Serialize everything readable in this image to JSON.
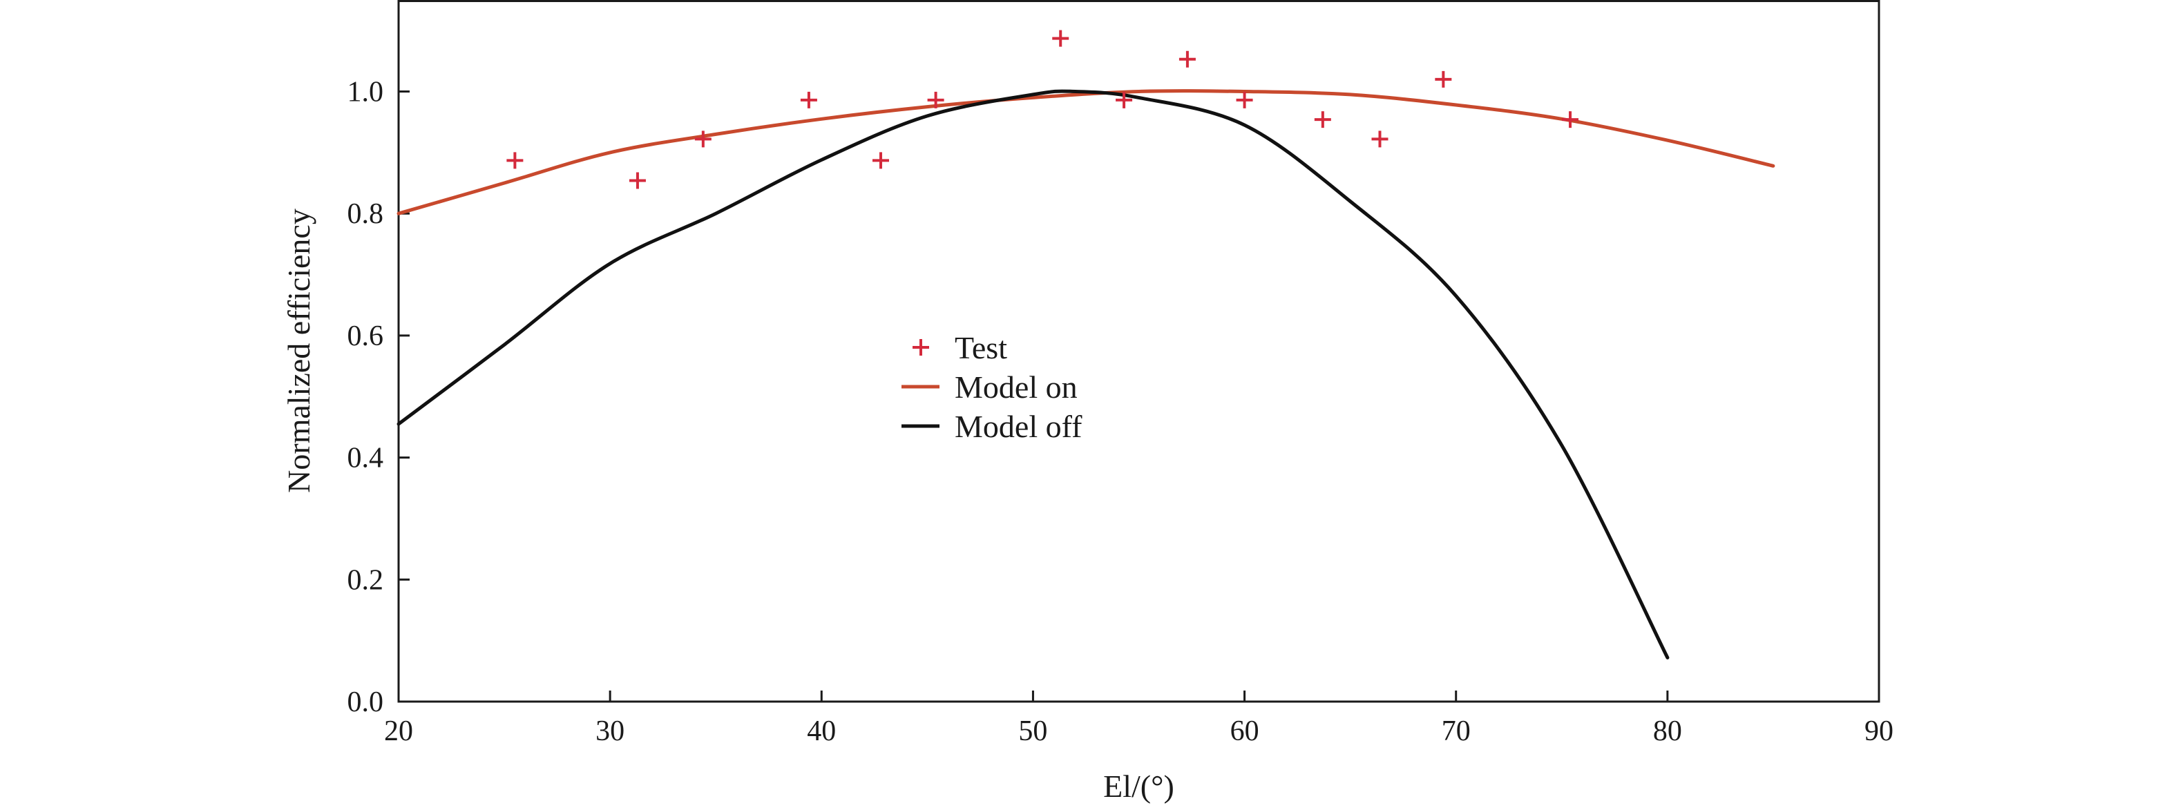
{
  "chart_data": {
    "type": "scatter",
    "xlabel": "El/(°)",
    "ylabel": "Normalized efficiency",
    "xlim": [
      20,
      90
    ],
    "ylim": [
      0.0,
      1.15
    ],
    "x_ticks": [
      20,
      30,
      40,
      50,
      60,
      70,
      80,
      90
    ],
    "x_tick_labels": [
      "20",
      "30",
      "40",
      "50",
      "60",
      "70",
      "80",
      "90"
    ],
    "y_ticks": [
      0.0,
      0.2,
      0.4,
      0.6,
      0.8,
      1.0
    ],
    "y_tick_labels": [
      "0.0",
      "0.2",
      "0.4",
      "0.6",
      "0.8",
      "1.0"
    ],
    "grid": false,
    "legend_position": "center",
    "series": [
      {
        "name": "Test",
        "kind": "scatter",
        "marker": "plus",
        "color": "#d42a3c",
        "x": [
          25.5,
          31.3,
          34.4,
          39.4,
          42.8,
          45.4,
          51.3,
          54.3,
          57.3,
          60.0,
          63.7,
          66.4,
          69.4,
          75.4
        ],
        "y": [
          0.887,
          0.854,
          0.922,
          0.986,
          0.887,
          0.986,
          1.087,
          0.986,
          1.053,
          0.986,
          0.954,
          0.922,
          1.02,
          0.954
        ]
      },
      {
        "name": "Model on",
        "kind": "line",
        "color": "#c8492d",
        "x": [
          20,
          25,
          30,
          35,
          40,
          45,
          50,
          55,
          60,
          65,
          70,
          75,
          80,
          85
        ],
        "y": [
          0.8,
          0.85,
          0.9,
          0.93,
          0.955,
          0.975,
          0.99,
          1.0,
          1.0,
          0.995,
          0.978,
          0.955,
          0.92,
          0.878
        ]
      },
      {
        "name": "Model off",
        "kind": "line",
        "color": "#111111",
        "x": [
          20,
          25,
          30,
          35,
          40,
          45,
          50,
          52,
          55,
          60,
          65,
          70,
          75,
          80
        ],
        "y": [
          0.455,
          0.585,
          0.718,
          0.8,
          0.888,
          0.96,
          0.995,
          1.0,
          0.99,
          0.945,
          0.82,
          0.665,
          0.42,
          0.072
        ]
      }
    ]
  }
}
